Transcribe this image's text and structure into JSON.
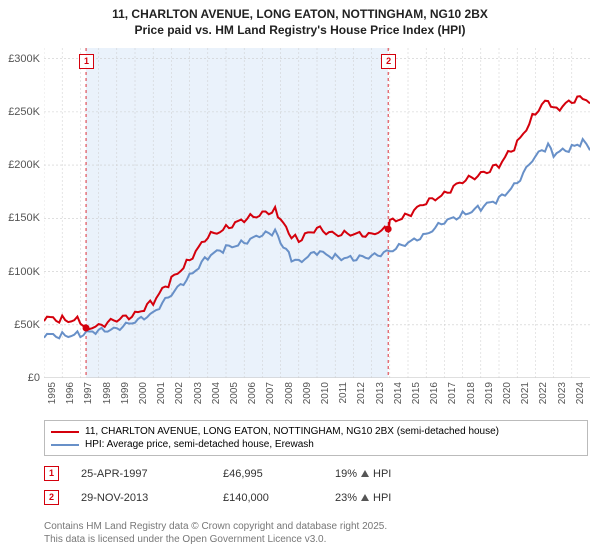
{
  "title_line1": "11, CHARLTON AVENUE, LONG EATON, NOTTINGHAM, NG10 2BX",
  "title_line2": "Price paid vs. HM Land Registry's House Price Index (HPI)",
  "chart": {
    "type": "line",
    "background_color": "#ffffff",
    "highlight_band_color": "#eaf2fb",
    "grid_color": "#cccccc",
    "x": {
      "min": 1995,
      "max": 2025,
      "ticks": [
        1995,
        1996,
        1997,
        1998,
        1999,
        2000,
        2001,
        2002,
        2003,
        2004,
        2005,
        2006,
        2007,
        2008,
        2009,
        2010,
        2011,
        2012,
        2013,
        2014,
        2015,
        2016,
        2017,
        2018,
        2019,
        2020,
        2021,
        2022,
        2023,
        2024
      ],
      "labels": [
        "1995",
        "1996",
        "1997",
        "1998",
        "1999",
        "2000",
        "2001",
        "2002",
        "2003",
        "2004",
        "2005",
        "2006",
        "2007",
        "2008",
        "2009",
        "2010",
        "2011",
        "2012",
        "2013",
        "2014",
        "2015",
        "2016",
        "2017",
        "2018",
        "2019",
        "2020",
        "2021",
        "2022",
        "2023",
        "2024"
      ],
      "label_fontsize": 10
    },
    "y": {
      "min": 0,
      "max": 310000,
      "ticks": [
        0,
        50000,
        100000,
        150000,
        200000,
        250000,
        300000
      ],
      "labels": [
        "£0",
        "£50K",
        "£100K",
        "£150K",
        "£200K",
        "£250K",
        "£300K"
      ],
      "label_fontsize": 11
    },
    "highlight_band": {
      "x_start": 1997.31,
      "x_end": 2013.91
    },
    "series": [
      {
        "id": "price_paid",
        "label": "11, CHARLTON AVENUE, LONG EATON, NOTTINGHAM, NG10 2BX (semi-detached house)",
        "color": "#d4000c",
        "line_width": 2,
        "data": [
          [
            1995,
            56000
          ],
          [
            1996,
            55000
          ],
          [
            1997,
            54000
          ],
          [
            1997.31,
            46995
          ],
          [
            1998,
            50000
          ],
          [
            1999,
            54000
          ],
          [
            2000,
            60000
          ],
          [
            2001,
            72000
          ],
          [
            2002,
            92000
          ],
          [
            2003,
            112000
          ],
          [
            2004,
            132000
          ],
          [
            2005,
            142000
          ],
          [
            2006,
            148000
          ],
          [
            2007,
            155000
          ],
          [
            2007.7,
            158000
          ],
          [
            2008,
            148000
          ],
          [
            2008.6,
            132000
          ],
          [
            2009,
            130000
          ],
          [
            2010,
            140000
          ],
          [
            2011,
            136000
          ],
          [
            2012,
            134000
          ],
          [
            2013,
            136000
          ],
          [
            2013.91,
            140000
          ],
          [
            2014,
            146000
          ],
          [
            2015,
            154000
          ],
          [
            2016,
            164000
          ],
          [
            2017,
            174000
          ],
          [
            2018,
            184000
          ],
          [
            2019,
            192000
          ],
          [
            2020,
            200000
          ],
          [
            2021,
            220000
          ],
          [
            2022,
            250000
          ],
          [
            2022.7,
            262000
          ],
          [
            2023,
            252000
          ],
          [
            2024,
            260000
          ],
          [
            2024.6,
            264000
          ],
          [
            2025,
            258000
          ]
        ]
      },
      {
        "id": "hpi",
        "label": "HPI: Average price, semi-detached house, Erewash",
        "color": "#6890c8",
        "line_width": 2,
        "data": [
          [
            1995,
            40000
          ],
          [
            1996,
            40000
          ],
          [
            1997,
            41000
          ],
          [
            1998,
            44000
          ],
          [
            1999,
            47000
          ],
          [
            2000,
            52000
          ],
          [
            2001,
            62000
          ],
          [
            2002,
            78000
          ],
          [
            2003,
            96000
          ],
          [
            2004,
            114000
          ],
          [
            2005,
            122000
          ],
          [
            2006,
            128000
          ],
          [
            2007,
            134000
          ],
          [
            2007.7,
            137000
          ],
          [
            2008,
            128000
          ],
          [
            2008.6,
            112000
          ],
          [
            2009,
            110000
          ],
          [
            2010,
            118000
          ],
          [
            2011,
            114000
          ],
          [
            2012,
            112000
          ],
          [
            2013,
            114000
          ],
          [
            2014,
            120000
          ],
          [
            2015,
            126000
          ],
          [
            2016,
            136000
          ],
          [
            2017,
            146000
          ],
          [
            2018,
            154000
          ],
          [
            2019,
            160000
          ],
          [
            2020,
            168000
          ],
          [
            2021,
            184000
          ],
          [
            2022,
            208000
          ],
          [
            2022.7,
            218000
          ],
          [
            2023,
            210000
          ],
          [
            2024,
            216000
          ],
          [
            2024.6,
            222000
          ],
          [
            2025,
            214000
          ]
        ]
      }
    ],
    "sale_markers": [
      {
        "n": "1",
        "x": 1997.31,
        "y_label_offset": 52,
        "color": "#d4000c"
      },
      {
        "n": "2",
        "x": 2013.91,
        "y_label_offset": 52,
        "color": "#d4000c"
      }
    ],
    "price_point_markers": [
      {
        "x": 1997.31,
        "y": 46995,
        "color": "#d4000c"
      },
      {
        "x": 2013.91,
        "y": 140000,
        "color": "#d4000c"
      }
    ]
  },
  "legend": {
    "rows": [
      {
        "color": "#d4000c",
        "label": "11, CHARLTON AVENUE, LONG EATON, NOTTINGHAM, NG10 2BX (semi-detached house)"
      },
      {
        "color": "#6890c8",
        "label": "HPI: Average price, semi-detached house, Erewash"
      }
    ]
  },
  "sales": [
    {
      "n": "1",
      "color": "#d4000c",
      "date": "25-APR-1997",
      "price": "£46,995",
      "delta": "19% ↑ HPI",
      "delta_text": "19%",
      "delta_suffix": "HPI"
    },
    {
      "n": "2",
      "color": "#d4000c",
      "date": "29-NOV-2013",
      "price": "£140,000",
      "delta": "23% ↑ HPI",
      "delta_text": "23%",
      "delta_suffix": "HPI"
    }
  ],
  "attribution_line1": "Contains HM Land Registry data © Crown copyright and database right 2025.",
  "attribution_line2": "This data is licensed under the Open Government Licence v3.0."
}
